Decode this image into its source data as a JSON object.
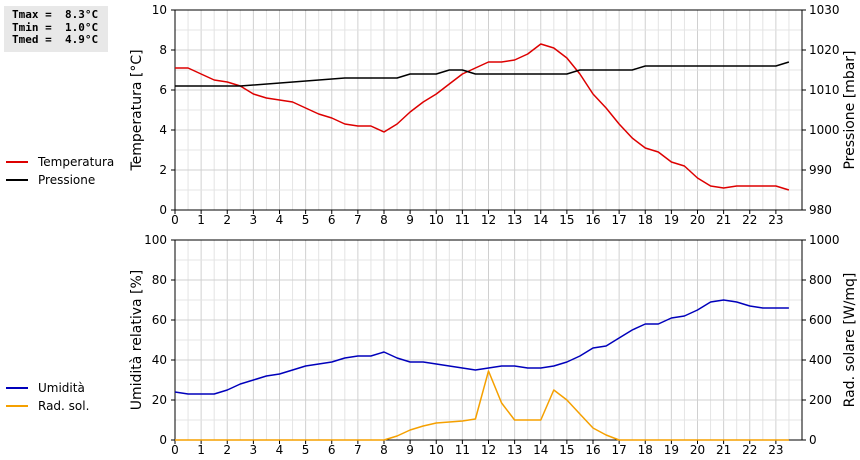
{
  "stats": {
    "tmax": "Tmax =  8.3°C",
    "tmin": "Tmin =  1.0°C",
    "tmed": "Tmed =  4.9°C"
  },
  "legend_top": [
    {
      "label": "Temperatura",
      "color": "#dd0000"
    },
    {
      "label": "Pressione",
      "color": "#000000"
    }
  ],
  "legend_bottom": [
    {
      "label": "Umidità",
      "color": "#0000bb"
    },
    {
      "label": "Rad. sol.",
      "color": "#f5a000"
    }
  ],
  "chart_data": [
    {
      "type": "line",
      "ylabel": "Temperatura [°C]",
      "y2label": "Pressione [mbar]",
      "xlim": [
        0,
        24
      ],
      "ylim": [
        0,
        10
      ],
      "y2lim": [
        980,
        1030
      ],
      "x_ticks": [
        "0",
        "1",
        "2",
        "3",
        "4",
        "5",
        "6",
        "7",
        "8",
        "9",
        "10",
        "11",
        "12",
        "13",
        "14",
        "15",
        "16",
        "17",
        "18",
        "19",
        "20",
        "21",
        "22",
        "23"
      ],
      "y_ticks": [
        "0",
        "2",
        "4",
        "6",
        "8",
        "10"
      ],
      "y2_ticks": [
        "980",
        "990",
        "1000",
        "1010",
        "1020",
        "1030"
      ],
      "grid": true,
      "series": [
        {
          "name": "Temperatura",
          "axis": "left",
          "color": "#dd0000",
          "x": [
            0,
            0.5,
            1,
            1.5,
            2,
            2.5,
            3,
            3.5,
            4,
            4.5,
            5,
            5.5,
            6,
            6.5,
            7,
            7.5,
            8,
            8.5,
            9,
            9.5,
            10,
            10.5,
            11,
            11.5,
            12,
            12.5,
            13,
            13.5,
            14,
            14.5,
            15,
            15.5,
            16,
            16.5,
            17,
            17.5,
            18,
            18.5,
            19,
            19.5,
            20,
            20.5,
            21,
            21.5,
            22,
            22.5,
            23,
            23.5
          ],
          "y": [
            7.1,
            7.1,
            6.8,
            6.5,
            6.4,
            6.2,
            5.8,
            5.6,
            5.5,
            5.4,
            5.1,
            4.8,
            4.6,
            4.3,
            4.2,
            4.2,
            3.9,
            4.3,
            4.9,
            5.4,
            5.8,
            6.3,
            6.8,
            7.1,
            7.4,
            7.4,
            7.5,
            7.8,
            8.3,
            8.1,
            7.6,
            6.8,
            5.8,
            5.1,
            4.3,
            3.6,
            3.1,
            2.9,
            2.4,
            2.2,
            1.6,
            1.2,
            1.1,
            1.2,
            1.2,
            1.2,
            1.2,
            1.0
          ]
        },
        {
          "name": "Pressione",
          "axis": "right",
          "color": "#000000",
          "x": [
            0,
            2.5,
            6.5,
            8.5,
            9,
            10,
            10.5,
            11,
            11.5,
            14,
            15,
            15.5,
            17.5,
            18,
            23,
            23.5
          ],
          "y": [
            1011,
            1011,
            1013,
            1013,
            1014,
            1014,
            1015,
            1015,
            1014,
            1014,
            1014,
            1015,
            1015,
            1016,
            1016,
            1017
          ]
        }
      ]
    },
    {
      "type": "line",
      "ylabel": "Umidità relativa [%]",
      "y2label": "Rad. solare [W/mq]",
      "xlim": [
        0,
        24
      ],
      "ylim": [
        0,
        100
      ],
      "y2lim": [
        0,
        1000
      ],
      "x_ticks": [
        "0",
        "1",
        "2",
        "3",
        "4",
        "5",
        "6",
        "7",
        "8",
        "9",
        "10",
        "11",
        "12",
        "13",
        "14",
        "15",
        "16",
        "17",
        "18",
        "19",
        "20",
        "21",
        "22",
        "23"
      ],
      "y_ticks": [
        "0",
        "20",
        "40",
        "60",
        "80",
        "100"
      ],
      "y2_ticks": [
        "0",
        "200",
        "400",
        "600",
        "800",
        "1000"
      ],
      "grid": true,
      "series": [
        {
          "name": "Umidità",
          "axis": "left",
          "color": "#0000bb",
          "x": [
            0,
            0.5,
            1,
            1.5,
            2,
            2.5,
            3,
            3.5,
            4,
            4.5,
            5,
            5.5,
            6,
            6.5,
            7,
            7.5,
            8,
            8.5,
            9,
            9.5,
            10,
            10.5,
            11,
            11.5,
            12,
            12.5,
            13,
            13.5,
            14,
            14.5,
            15,
            15.5,
            16,
            16.5,
            17,
            17.5,
            18,
            18.5,
            19,
            19.5,
            20,
            20.5,
            21,
            21.5,
            22,
            22.5,
            23,
            23.5
          ],
          "y": [
            24,
            23,
            23,
            23,
            25,
            28,
            30,
            32,
            33,
            35,
            37,
            38,
            39,
            41,
            42,
            42,
            44,
            41,
            39,
            39,
            38,
            37,
            36,
            35,
            36,
            37,
            37,
            36,
            36,
            37,
            39,
            42,
            46,
            47,
            51,
            55,
            58,
            58,
            61,
            62,
            65,
            69,
            70,
            69,
            67,
            66,
            66,
            66
          ]
        },
        {
          "name": "Rad. sol.",
          "axis": "right",
          "color": "#f5a000",
          "x": [
            0,
            8,
            8.5,
            9,
            9.5,
            10,
            10.5,
            11,
            11.5,
            12,
            12.5,
            13,
            13.5,
            14,
            14.5,
            15,
            15.5,
            16,
            16.5,
            17,
            23.5
          ],
          "y": [
            0,
            0,
            20,
            50,
            70,
            85,
            90,
            95,
            105,
            345,
            185,
            100,
            100,
            100,
            250,
            200,
            130,
            60,
            25,
            0,
            0
          ]
        }
      ]
    }
  ]
}
